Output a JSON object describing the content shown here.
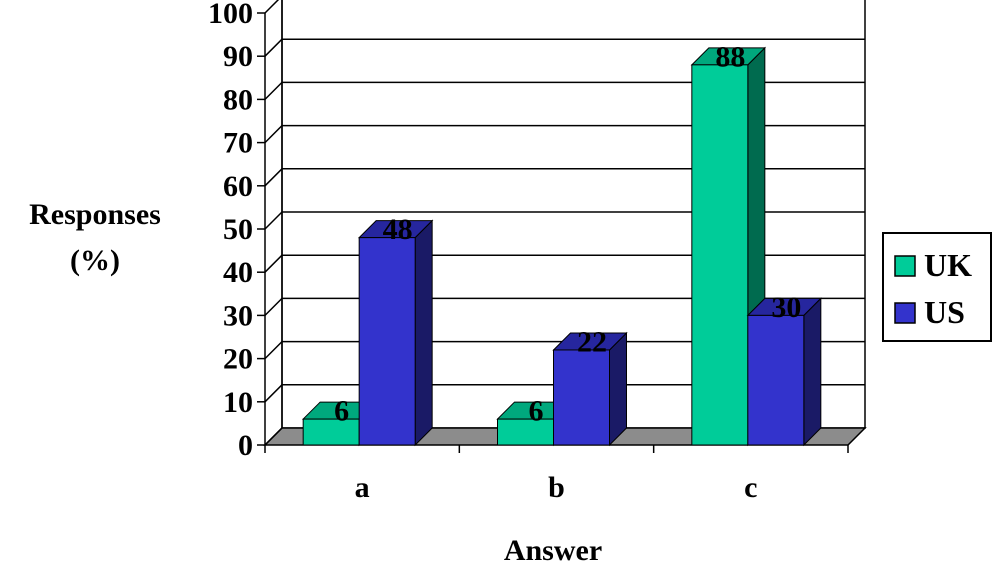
{
  "chart_data": {
    "type": "bar",
    "categories": [
      "a",
      "b",
      "c"
    ],
    "series": [
      {
        "name": "UK",
        "values": [
          6,
          6,
          88
        ]
      },
      {
        "name": "US",
        "values": [
          48,
          22,
          30
        ]
      }
    ],
    "data_labels": [
      "6",
      "48",
      "6",
      "22",
      "88",
      "30"
    ],
    "ylabel": [
      "Responses",
      "(%)"
    ],
    "xlabel": "Answer",
    "ylim": [
      0,
      100
    ],
    "yticks": [
      "0",
      "10",
      "20",
      "30",
      "40",
      "50",
      "60",
      "70",
      "80",
      "90",
      "100"
    ],
    "grid": true,
    "legend_position": "right",
    "style": "3d-clustered-column",
    "colors": {
      "UK": "#00cc99",
      "UK_side": "#006b4f",
      "UK_top": "#00a87d",
      "US": "#3333cc",
      "US_side": "#1a1a66",
      "US_top": "#26269e",
      "floor": "#8c8c8c",
      "grid": "#000000"
    }
  }
}
